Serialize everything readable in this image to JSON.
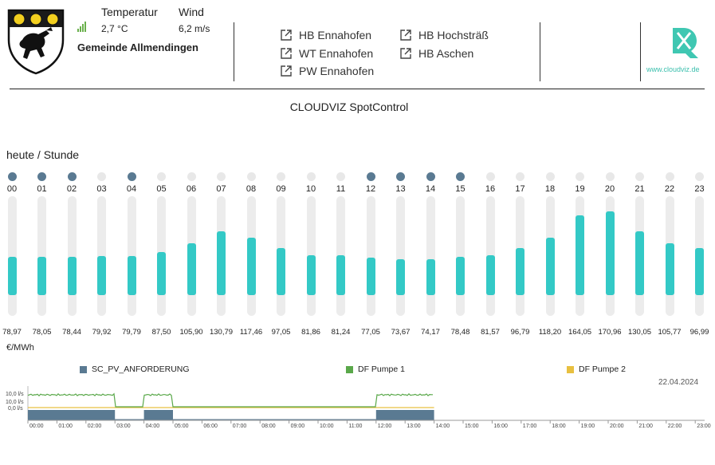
{
  "header": {
    "town": "Gemeinde Allmendingen",
    "temperature_label": "Temperatur",
    "temperature_value": "2,7 °C",
    "wind_label": "Wind",
    "wind_value": "6,2 m/s",
    "links": [
      {
        "label": "HB Ennahofen"
      },
      {
        "label": "WT Ennahofen"
      },
      {
        "label": "PW Ennahofen"
      },
      {
        "label": "HB Hochsträß"
      },
      {
        "label": "HB Aschen"
      }
    ],
    "brand_url": "www.cloudviz.de"
  },
  "main": {
    "title": "CLOUDVIZ SpotControl",
    "section_label": "heute / Stunde",
    "unit_label": "€/MWh"
  },
  "colors": {
    "bar_fill": "#33c9c6",
    "active_dot": "#5a7a92",
    "inactive_dot": "#e8e8e8",
    "pv_series": "#5a7a92",
    "pump1_series": "#5aa84a",
    "pump2_series": "#e8c040"
  },
  "hours": [
    {
      "hour": "00",
      "price": "78,97",
      "value": 78.97,
      "active": true
    },
    {
      "hour": "01",
      "price": "78,05",
      "value": 78.05,
      "active": true
    },
    {
      "hour": "02",
      "price": "78,44",
      "value": 78.44,
      "active": true
    },
    {
      "hour": "03",
      "price": "79,92",
      "value": 79.92,
      "active": false
    },
    {
      "hour": "04",
      "price": "79,79",
      "value": 79.79,
      "active": true
    },
    {
      "hour": "05",
      "price": "87,50",
      "value": 87.5,
      "active": false
    },
    {
      "hour": "06",
      "price": "105,90",
      "value": 105.9,
      "active": false
    },
    {
      "hour": "07",
      "price": "130,79",
      "value": 130.79,
      "active": false
    },
    {
      "hour": "08",
      "price": "117,46",
      "value": 117.46,
      "active": false
    },
    {
      "hour": "09",
      "price": "97,05",
      "value": 97.05,
      "active": false
    },
    {
      "hour": "10",
      "price": "81,86",
      "value": 81.86,
      "active": false
    },
    {
      "hour": "11",
      "price": "81,24",
      "value": 81.24,
      "active": false
    },
    {
      "hour": "12",
      "price": "77,05",
      "value": 77.05,
      "active": true
    },
    {
      "hour": "13",
      "price": "73,67",
      "value": 73.67,
      "active": true
    },
    {
      "hour": "14",
      "price": "74,17",
      "value": 74.17,
      "active": true
    },
    {
      "hour": "15",
      "price": "78,48",
      "value": 78.48,
      "active": true
    },
    {
      "hour": "16",
      "price": "81,57",
      "value": 81.57,
      "active": false
    },
    {
      "hour": "17",
      "price": "96,79",
      "value": 96.79,
      "active": false
    },
    {
      "hour": "18",
      "price": "118,20",
      "value": 118.2,
      "active": false
    },
    {
      "hour": "19",
      "price": "164,05",
      "value": 164.05,
      "active": false
    },
    {
      "hour": "20",
      "price": "170,96",
      "value": 170.96,
      "active": false
    },
    {
      "hour": "21",
      "price": "130,05",
      "value": 130.05,
      "active": false
    },
    {
      "hour": "22",
      "price": "105,77",
      "value": 105.77,
      "active": false
    },
    {
      "hour": "23",
      "price": "96,99",
      "value": 96.99,
      "active": false
    }
  ],
  "bar_scale_max": 245,
  "timeline": {
    "date": "22.04.2024",
    "legend": [
      {
        "name": "SC_PV_ANFORDERUNG",
        "color": "#5a7a92"
      },
      {
        "name": "DF Pumpe 1",
        "color": "#5aa84a"
      },
      {
        "name": "DF Pumpe 2",
        "color": "#e8c040"
      }
    ],
    "y_ticks": [
      "10,0 l/s",
      "10,0 l/s",
      "0,0 l/s"
    ],
    "x_ticks": [
      "00:00",
      "01:00",
      "02:00",
      "03:00",
      "04:00",
      "05:00",
      "06:00",
      "07:00",
      "08:00",
      "09:00",
      "10:00",
      "11:00",
      "12:00",
      "13:00",
      "14:00",
      "15:00",
      "16:00",
      "17:00",
      "18:00",
      "19:00",
      "20:00",
      "21:00",
      "22:00",
      "23:00"
    ],
    "pv_active_hours": [
      [
        0,
        3
      ],
      [
        4,
        5
      ],
      [
        12,
        14
      ]
    ],
    "pump1_high_hours": [
      [
        0,
        3
      ],
      [
        4,
        5
      ],
      [
        12,
        14
      ]
    ],
    "data_end_hour": 14
  }
}
